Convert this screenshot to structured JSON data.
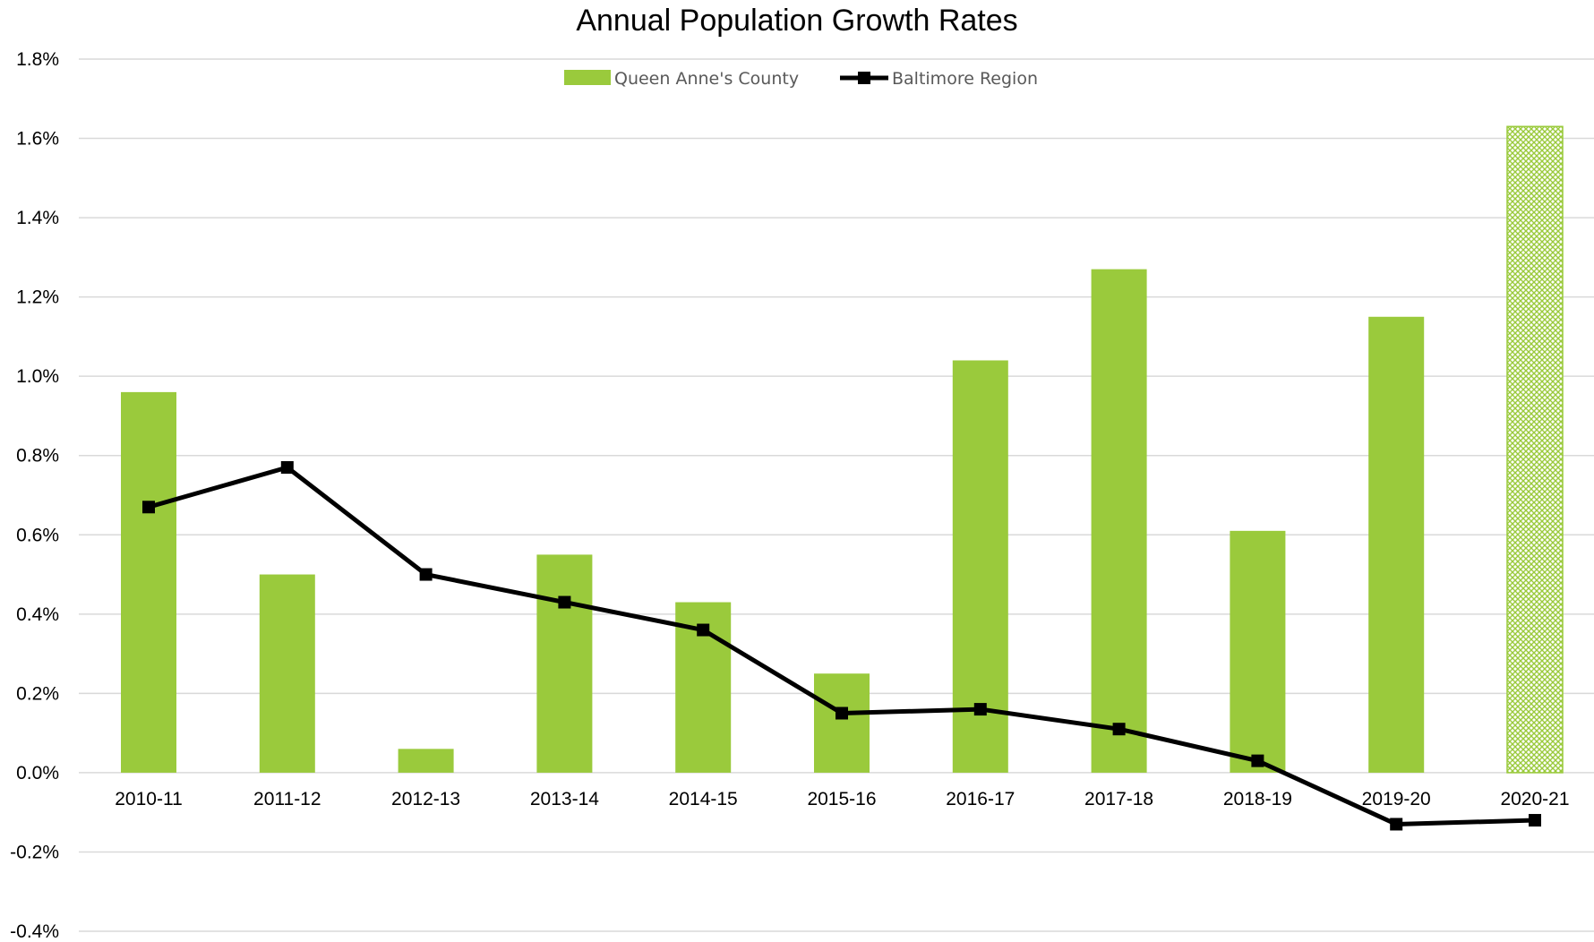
{
  "chart_data": {
    "type": "bar",
    "title": "Annual Population Growth Rates",
    "xlabel": "",
    "ylabel": "",
    "categories": [
      "2010-11",
      "2011-12",
      "2012-13",
      "2013-14",
      "2014-15",
      "2015-16",
      "2016-17",
      "2017-18",
      "2018-19",
      "2019-20",
      "2020-21"
    ],
    "ylim": [
      -0.4,
      1.8
    ],
    "y_ticks": [
      1.8,
      1.6,
      1.4,
      1.2,
      1.0,
      0.8,
      0.6,
      0.4,
      0.2,
      0.0,
      -0.2,
      -0.4
    ],
    "y_tick_labels": [
      "1.8%",
      "1.6%",
      "1.4%",
      "1.2%",
      "1.0%",
      "0.8%",
      "0.6%",
      "0.4%",
      "0.2%",
      "0.0%",
      "-0.2%",
      "-0.4%"
    ],
    "grid": true,
    "legend_position": "top-center",
    "series": [
      {
        "name": "Queen Anne's County",
        "kind": "bar",
        "color": "#9aca3c",
        "values": [
          0.96,
          0.5,
          0.06,
          0.55,
          0.43,
          0.25,
          1.04,
          1.27,
          0.61,
          1.15,
          1.63
        ],
        "hatched_last_bar": true
      },
      {
        "name": "Baltimore Region",
        "kind": "line",
        "marker": "square",
        "color": "#000000",
        "values": [
          0.67,
          0.77,
          0.5,
          0.43,
          0.36,
          0.15,
          0.16,
          0.11,
          0.03,
          -0.13,
          -0.12
        ]
      }
    ]
  }
}
